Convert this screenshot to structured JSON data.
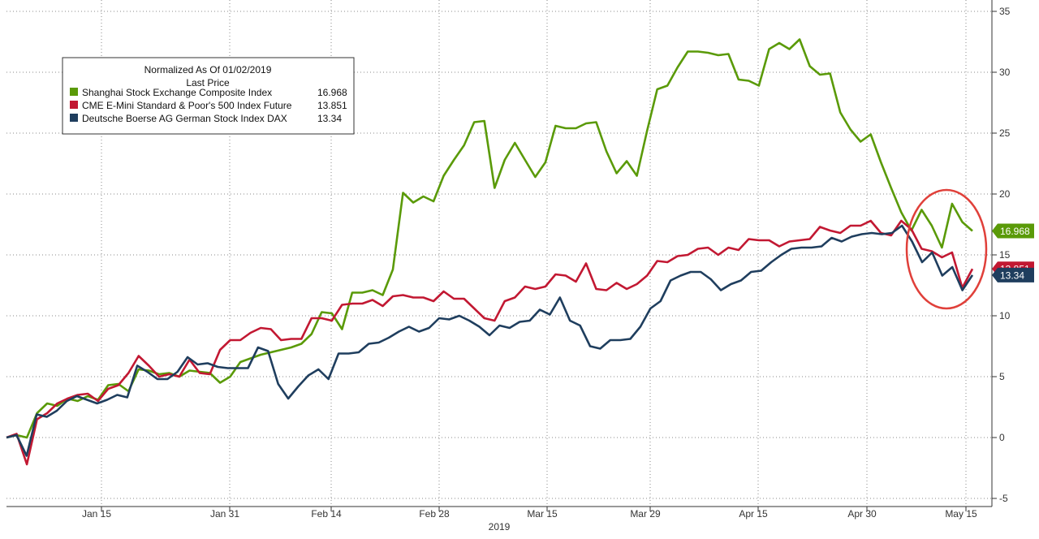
{
  "chart_data": {
    "type": "line",
    "legend": {
      "title_line1": "Normalized As Of 01/02/2019",
      "title_line2": "Last Price",
      "placement": "top-left"
    },
    "x_ticks": [
      "Jan 15",
      "Jan 31",
      "Feb 14",
      "Feb 28",
      "Mar 15",
      "Mar 29",
      "Apr 15",
      "Apr 30",
      "May 15"
    ],
    "x_year_label": "2019",
    "y_ticks": [
      "35",
      "30",
      "25",
      "20",
      "15",
      "10",
      "5",
      "0",
      "-5"
    ],
    "ylim": [
      -5.5,
      35.5
    ],
    "grid": true,
    "y_axis_side": "right",
    "annotation": "red circle highlighting recent decline",
    "series": [
      {
        "name": "Shanghai Stock Exchange Composite Index",
        "last": "16.968",
        "color": "#5a9a08",
        "values": [
          0,
          0.2,
          0,
          2,
          2.8,
          2.6,
          3.2,
          3,
          3.4,
          3.1,
          4.3,
          4.4,
          3.8,
          5.6,
          5.5,
          5.2,
          5.3,
          5.0,
          5.5,
          5.4,
          5.3,
          4.5,
          5.0,
          6.2,
          6.5,
          6.8,
          7.0,
          7.2,
          7.4,
          7.7,
          8.5,
          10.3,
          10.2,
          8.9,
          11.9,
          11.9,
          12.1,
          11.7,
          13.8,
          20.1,
          19.3,
          19.8,
          19.4,
          21.5,
          22.8,
          24.0,
          25.9,
          26.0,
          20.5,
          22.8,
          24.2,
          22.8,
          21.4,
          22.6,
          25.6,
          25.4,
          25.4,
          25.8,
          25.9,
          23.5,
          21.7,
          22.7,
          21.5,
          25.2,
          28.6,
          28.9,
          30.4,
          31.7,
          31.7,
          31.6,
          31.4,
          31.5,
          29.4,
          29.3,
          28.9,
          31.9,
          32.4,
          31.9,
          32.7,
          30.5,
          29.8,
          29.9,
          26.7,
          25.3,
          24.3,
          24.9,
          22.6,
          20.5,
          18.5,
          17.0,
          18.7,
          17.4,
          15.6,
          19.2,
          17.7,
          16.968
        ]
      },
      {
        "name": "CME E-Mini Standard & Poor's 500 Index Future",
        "last": "13.851",
        "color": "#c21832",
        "values": [
          0,
          0.3,
          -2.2,
          1.5,
          2,
          2.8,
          3.2,
          3.5,
          3.6,
          3.0,
          4,
          4.3,
          5.3,
          6.7,
          5.9,
          5.0,
          5.2,
          5.0,
          6.4,
          5.3,
          5.2,
          7.2,
          8.0,
          8.0,
          8.6,
          9.0,
          8.9,
          8.0,
          8.1,
          8.1,
          9.8,
          9.8,
          9.6,
          10.9,
          11.0,
          11.0,
          11.3,
          10.8,
          11.6,
          11.7,
          11.5,
          11.5,
          11.2,
          12.0,
          11.4,
          11.4,
          10.6,
          9.8,
          9.6,
          11.2,
          11.5,
          12.4,
          12.2,
          12.4,
          13.4,
          13.3,
          12.8,
          14.3,
          12.2,
          12.1,
          12.7,
          12.2,
          12.6,
          13.3,
          14.5,
          14.4,
          14.9,
          15.0,
          15.5,
          15.6,
          15.0,
          15.6,
          15.4,
          16.3,
          16.2,
          16.2,
          15.7,
          16.1,
          16.2,
          16.3,
          17.3,
          17.0,
          16.8,
          17.4,
          17.4,
          17.8,
          16.8,
          16.6,
          17.8,
          17.1,
          15.5,
          15.3,
          14.8,
          15.2,
          12.3,
          13.851
        ]
      },
      {
        "name": "Deutsche Boerse AG German Stock Index DAX",
        "last": "13.34",
        "color": "#1f3e5e",
        "values": [
          0,
          0.2,
          -1.5,
          1.9,
          1.7,
          2.2,
          3.0,
          3.4,
          3.1,
          2.8,
          3.1,
          3.5,
          3.3,
          5.9,
          5.4,
          4.8,
          4.8,
          5.4,
          6.6,
          6.0,
          6.1,
          5.8,
          5.7,
          5.7,
          5.7,
          7.4,
          7.1,
          4.4,
          3.2,
          4.2,
          5.1,
          5.6,
          4.8,
          6.9,
          6.9,
          7.0,
          7.7,
          7.8,
          8.2,
          8.7,
          9.1,
          8.7,
          9.0,
          9.8,
          9.7,
          10.0,
          9.6,
          9.1,
          8.4,
          9.2,
          9.0,
          9.5,
          9.6,
          10.5,
          10.1,
          11.5,
          9.6,
          9.2,
          7.5,
          7.3,
          8.0,
          8.0,
          8.1,
          9.1,
          10.6,
          11.2,
          12.9,
          13.3,
          13.6,
          13.6,
          13.0,
          12.1,
          12.6,
          12.9,
          13.6,
          13.7,
          14.4,
          15.0,
          15.5,
          15.6,
          15.6,
          15.7,
          16.4,
          16.1,
          16.5,
          16.7,
          16.8,
          16.7,
          16.8,
          17.4,
          16.1,
          14.4,
          15.2,
          13.3,
          14.0,
          12.1,
          13.34
        ]
      }
    ]
  }
}
